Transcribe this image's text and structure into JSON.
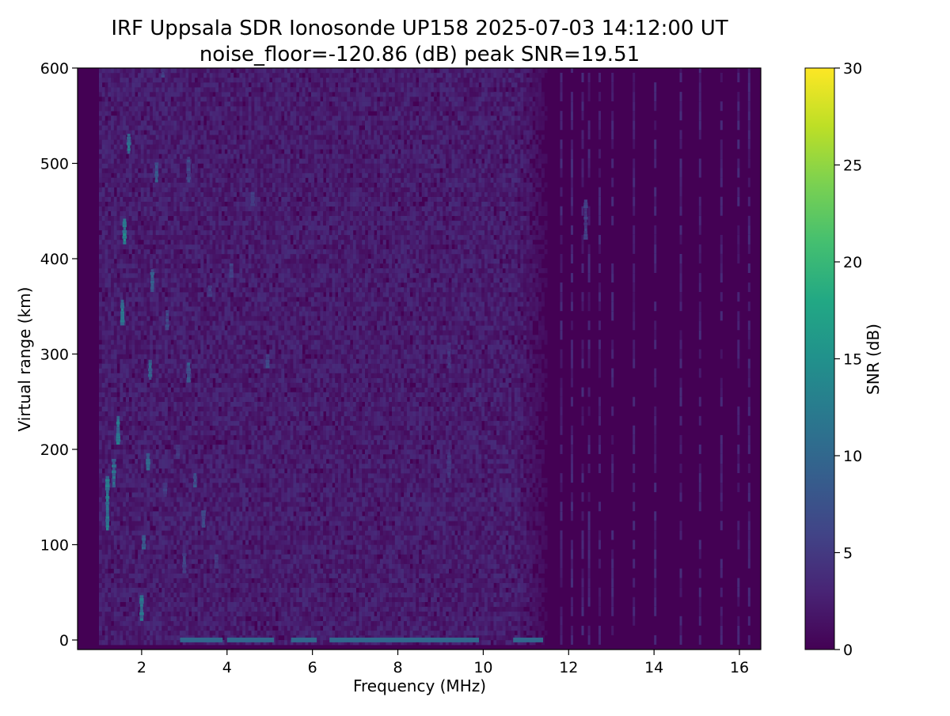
{
  "title_line1": "IRF Uppsala SDR Ionosonde UP158 2025-07-03 14:12:00  UT",
  "title_line2": "noise_floor=-120.86 (dB) peak SNR=19.51",
  "chart_data": {
    "type": "heatmap",
    "title": "IRF Uppsala SDR Ionosonde UP158 2025-07-03 14:12:00  UT",
    "subtitle": "noise_floor=-120.86 (dB) peak SNR=19.51",
    "xlabel": "Frequency (MHz)",
    "ylabel": "Virtual range (km)",
    "xlim": [
      0.5,
      16.5
    ],
    "ylim": [
      -10,
      600
    ],
    "xticks": [
      2,
      4,
      6,
      8,
      10,
      12,
      14,
      16
    ],
    "yticks": [
      0,
      100,
      200,
      300,
      400,
      500,
      600
    ],
    "grid": false,
    "colorbar": {
      "label": "SNR (dB)",
      "colormap": "viridis",
      "range": [
        0,
        30
      ],
      "ticks": [
        0,
        5,
        10,
        15,
        20,
        25,
        30
      ]
    },
    "background_noise_snr_db": {
      "frequency_range_mhz": [
        1.0,
        11.7
      ],
      "typical": 2
    },
    "traces": [
      {
        "f_mhz": 1.2,
        "range_km": [
          115,
          170
        ],
        "snr_db": 13
      },
      {
        "f_mhz": 1.35,
        "range_km": [
          160,
          190
        ],
        "snr_db": 11
      },
      {
        "f_mhz": 1.45,
        "range_km": [
          205,
          235
        ],
        "snr_db": 13
      },
      {
        "f_mhz": 1.55,
        "range_km": [
          330,
          355
        ],
        "snr_db": 13
      },
      {
        "f_mhz": 1.6,
        "range_km": [
          415,
          440
        ],
        "snr_db": 14
      },
      {
        "f_mhz": 1.7,
        "range_km": [
          510,
          530
        ],
        "snr_db": 12
      },
      {
        "f_mhz": 2.0,
        "range_km": [
          20,
          45
        ],
        "snr_db": 12
      },
      {
        "f_mhz": 2.05,
        "range_km": [
          95,
          110
        ],
        "snr_db": 10
      },
      {
        "f_mhz": 2.15,
        "range_km": [
          178,
          195
        ],
        "snr_db": 10
      },
      {
        "f_mhz": 2.2,
        "range_km": [
          273,
          292
        ],
        "snr_db": 10
      },
      {
        "f_mhz": 2.25,
        "range_km": [
          365,
          388
        ],
        "snr_db": 9
      },
      {
        "f_mhz": 2.35,
        "range_km": [
          480,
          500
        ],
        "snr_db": 9
      },
      {
        "f_mhz": 3.1,
        "range_km": [
          270,
          290
        ],
        "snr_db": 9
      },
      {
        "f_mhz": 3.25,
        "range_km": [
          160,
          175
        ],
        "snr_db": 8
      },
      {
        "f_mhz": 3.45,
        "range_km": [
          118,
          135
        ],
        "snr_db": 8
      },
      {
        "f_mhz": 3.0,
        "range_km": [
          70,
          90
        ],
        "snr_db": 7
      },
      {
        "f_mhz": 3.1,
        "range_km": [
          480,
          505
        ],
        "snr_db": 7
      },
      {
        "f_mhz": 2.6,
        "range_km": [
          325,
          345
        ],
        "snr_db": 7
      },
      {
        "f_mhz": 4.95,
        "range_km": [
          285,
          300
        ],
        "snr_db": 7
      },
      {
        "f_mhz": 4.1,
        "range_km": [
          380,
          395
        ],
        "snr_db": 6
      },
      {
        "f_mhz": 3.6,
        "range_km": [
          360,
          370
        ],
        "snr_db": 6
      },
      {
        "f_mhz": 2.55,
        "range_km": [
          150,
          165
        ],
        "snr_db": 6
      },
      {
        "f_mhz": 2.85,
        "range_km": [
          190,
          205
        ],
        "snr_db": 6
      },
      {
        "f_mhz": 3.75,
        "range_km": [
          75,
          90
        ],
        "snr_db": 6
      },
      {
        "f_mhz": 4.6,
        "range_km": [
          455,
          470
        ],
        "snr_db": 6
      },
      {
        "f_mhz": 12.4,
        "range_km": [
          420,
          460
        ],
        "snr_db": 6
      },
      {
        "f_mhz": 9.2,
        "range_km": [
          170,
          200
        ],
        "snr_db": 5
      },
      {
        "f_mhz": 9.2,
        "range_km": [
          285,
          310
        ],
        "snr_db": 5
      },
      {
        "f_mhz": 2.5,
        "range_km": [
          590,
          600
        ],
        "snr_db": 6
      }
    ],
    "ground_echo": {
      "range_km": 0,
      "segments_mhz": [
        [
          2.9,
          3.9
        ],
        [
          4.0,
          5.1
        ],
        [
          5.5,
          6.1
        ],
        [
          6.4,
          9.9
        ],
        [
          10.7,
          11.4
        ]
      ],
      "snr_db": 10
    },
    "stripe_frequencies_mhz": [
      11.8,
      12.05,
      12.3,
      12.45,
      12.7,
      13.0,
      13.5,
      14.0,
      14.6,
      15.05,
      15.55,
      15.95,
      16.2
    ]
  }
}
